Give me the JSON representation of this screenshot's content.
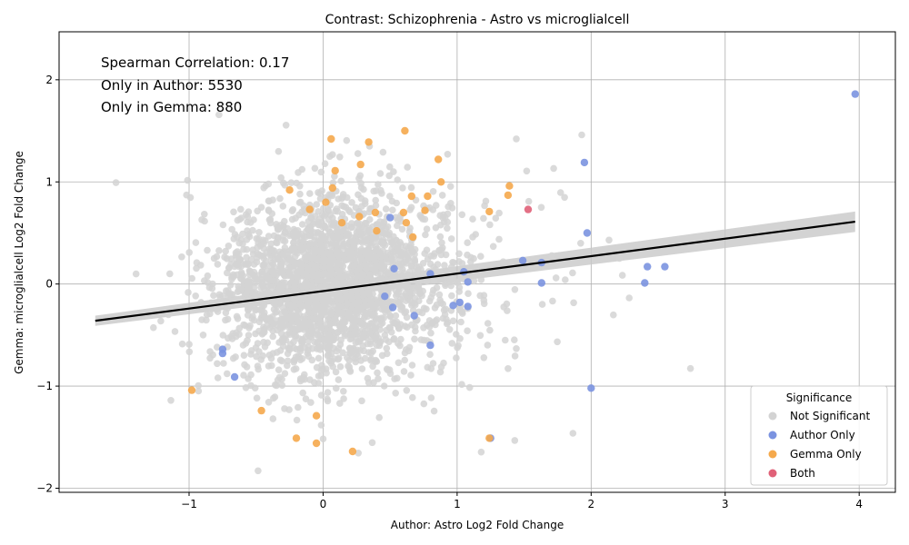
{
  "chart_data": {
    "type": "scatter",
    "title": "Contrast: Schizophrenia - Astro vs microglialcell",
    "xlabel": "Author: Astro Log2 Fold Change",
    "ylabel": "Gemma: microglialcell Log2 Fold Change",
    "xlim": [
      -1.97,
      4.27
    ],
    "ylim": [
      -2.04,
      2.47
    ],
    "xticks": [
      -1,
      0,
      1,
      2,
      3,
      4
    ],
    "yticks": [
      -2,
      -1,
      0,
      1,
      2
    ],
    "xtick_labels": [
      "−1",
      "0",
      "1",
      "2",
      "3",
      "4"
    ],
    "ytick_labels": [
      "−2",
      "−1",
      "0",
      "1",
      "2"
    ],
    "grid": true,
    "annotations": [
      "Spearman Correlation: 0.17",
      "Only in Author: 5530",
      "Only in Gemma: 880"
    ],
    "legend": {
      "title": "Significance",
      "placement": "bottom-right",
      "entries": [
        "Not Significant",
        "Author Only",
        "Gemma Only",
        "Both"
      ]
    },
    "colors": {
      "not_significant": "#d3d3d3",
      "author_only": "#7b93e0",
      "gemma_only": "#f5a94c",
      "both": "#e06178",
      "fit_line": "#000000",
      "confidence_band": "#c8c8c8"
    },
    "regression": {
      "x": [
        -1.7,
        3.97
      ],
      "y": [
        -0.36,
        0.61
      ],
      "ci_lower": [
        -0.41,
        0.51
      ],
      "ci_upper": [
        -0.31,
        0.71
      ]
    },
    "series": [
      {
        "name": "Author Only",
        "points": [
          [
            3.97,
            1.86
          ],
          [
            1.95,
            1.19
          ],
          [
            1.97,
            0.5
          ],
          [
            2.42,
            0.17
          ],
          [
            2.55,
            0.17
          ],
          [
            2.4,
            0.01
          ],
          [
            1.63,
            0.01
          ],
          [
            1.63,
            0.21
          ],
          [
            1.49,
            0.23
          ],
          [
            1.05,
            0.12
          ],
          [
            1.08,
            0.02
          ],
          [
            1.02,
            -0.18
          ],
          [
            0.97,
            -0.21
          ],
          [
            1.08,
            -0.22
          ],
          [
            0.8,
            -0.6
          ],
          [
            0.68,
            -0.31
          ],
          [
            0.8,
            0.1
          ],
          [
            0.53,
            0.15
          ],
          [
            0.5,
            0.65
          ],
          [
            0.46,
            -0.12
          ],
          [
            0.52,
            -0.23
          ],
          [
            2.0,
            -1.02
          ],
          [
            1.25,
            -1.51
          ],
          [
            -0.75,
            -0.64
          ],
          [
            -0.75,
            -0.68
          ],
          [
            -0.66,
            -0.91
          ]
        ]
      },
      {
        "name": "Gemma Only",
        "points": [
          [
            0.06,
            1.42
          ],
          [
            0.34,
            1.39
          ],
          [
            0.61,
            1.5
          ],
          [
            0.86,
            1.22
          ],
          [
            0.28,
            1.17
          ],
          [
            0.09,
            1.11
          ],
          [
            0.88,
            1.0
          ],
          [
            0.07,
            0.94
          ],
          [
            -0.25,
            0.92
          ],
          [
            0.66,
            0.86
          ],
          [
            0.78,
            0.86
          ],
          [
            1.38,
            0.87
          ],
          [
            1.39,
            0.96
          ],
          [
            0.76,
            0.72
          ],
          [
            1.24,
            0.71
          ],
          [
            0.39,
            0.7
          ],
          [
            0.6,
            0.7
          ],
          [
            0.02,
            0.8
          ],
          [
            0.27,
            0.66
          ],
          [
            -0.1,
            0.73
          ],
          [
            0.62,
            0.6
          ],
          [
            0.14,
            0.6
          ],
          [
            0.67,
            0.46
          ],
          [
            0.4,
            0.52
          ],
          [
            -0.98,
            -1.04
          ],
          [
            -0.46,
            -1.24
          ],
          [
            -0.05,
            -1.29
          ],
          [
            -0.2,
            -1.51
          ],
          [
            -0.05,
            -1.56
          ],
          [
            0.22,
            -1.64
          ],
          [
            1.24,
            -1.51
          ]
        ]
      },
      {
        "name": "Both",
        "points": [
          [
            1.53,
            0.73
          ]
        ]
      }
    ]
  }
}
